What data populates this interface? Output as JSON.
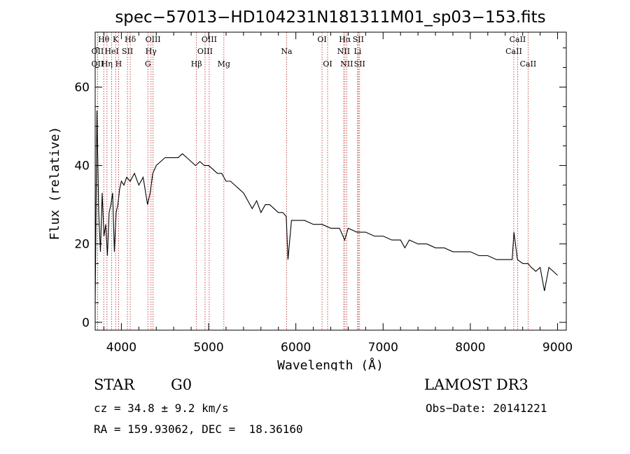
{
  "chart_data": {
    "type": "line",
    "title": "spec−57013−HD104231N181311M01_sp03−153.fits",
    "xlabel": "Wavelength (Å)",
    "ylabel": "Flux (relative)",
    "xlim": [
      3700,
      9100
    ],
    "ylim": [
      -2,
      74
    ],
    "xticks": [
      4000,
      5000,
      6000,
      7000,
      8000,
      9000
    ],
    "yticks": [
      0,
      20,
      40,
      60
    ],
    "series": [
      {
        "name": "spectrum",
        "x": [
          3700,
          3720,
          3740,
          3760,
          3780,
          3800,
          3820,
          3840,
          3860,
          3880,
          3900,
          3920,
          3940,
          3960,
          3980,
          4000,
          4030,
          4060,
          4100,
          4150,
          4200,
          4250,
          4300,
          4330,
          4360,
          4400,
          4450,
          4500,
          4550,
          4600,
          4650,
          4700,
          4750,
          4800,
          4850,
          4900,
          4950,
          5000,
          5050,
          5100,
          5150,
          5200,
          5250,
          5300,
          5350,
          5400,
          5450,
          5500,
          5550,
          5600,
          5650,
          5700,
          5750,
          5800,
          5850,
          5890,
          5910,
          5950,
          6000,
          6100,
          6200,
          6300,
          6400,
          6500,
          6560,
          6600,
          6700,
          6800,
          6900,
          7000,
          7100,
          7200,
          7250,
          7300,
          7400,
          7500,
          7600,
          7700,
          7800,
          7900,
          8000,
          8100,
          8200,
          8300,
          8400,
          8480,
          8500,
          8540,
          8600,
          8660,
          8700,
          8750,
          8800,
          8850,
          8900,
          8950,
          9000
        ],
        "y": [
          5,
          54,
          28,
          18,
          33,
          22,
          25,
          17,
          28,
          30,
          33,
          18,
          28,
          30,
          34,
          36,
          35,
          37,
          36,
          38,
          35,
          37,
          30,
          33,
          38,
          40,
          41,
          42,
          42,
          42,
          42,
          43,
          42,
          41,
          40,
          41,
          40,
          40,
          39,
          38,
          38,
          36,
          36,
          35,
          34,
          33,
          31,
          29,
          31,
          28,
          30,
          30,
          29,
          28,
          28,
          27,
          16,
          26,
          26,
          26,
          25,
          25,
          24,
          24,
          21,
          24,
          23,
          23,
          22,
          22,
          21,
          21,
          19,
          21,
          20,
          20,
          19,
          19,
          18,
          18,
          18,
          17,
          17,
          16,
          16,
          16,
          23,
          16,
          15,
          15,
          14,
          13,
          14,
          8,
          14,
          13,
          12
        ]
      }
    ],
    "lines": [
      {
        "label": "Hθ",
        "wave": 3798,
        "row": 0
      },
      {
        "label": "OII",
        "wave": 3727,
        "row": 1
      },
      {
        "label": "OII",
        "wave": 3727,
        "row": 2
      },
      {
        "label": "K",
        "wave": 3934,
        "row": 0
      },
      {
        "label": "HeI",
        "wave": 3889,
        "row": 1
      },
      {
        "label": "Hη",
        "wave": 3835,
        "row": 2
      },
      {
        "label": "SII",
        "wave": 4070,
        "row": 1
      },
      {
        "label": "H",
        "wave": 3968,
        "row": 2
      },
      {
        "label": "Hδ",
        "wave": 4102,
        "row": 0
      },
      {
        "label": "OIII",
        "wave": 4363,
        "row": 0
      },
      {
        "label": "Hγ",
        "wave": 4340,
        "row": 1
      },
      {
        "label": "G",
        "wave": 4304,
        "row": 2
      },
      {
        "label": "OIII",
        "wave": 5007,
        "row": 0
      },
      {
        "label": "OIII",
        "wave": 4959,
        "row": 1
      },
      {
        "label": "Hβ",
        "wave": 4861,
        "row": 2
      },
      {
        "label": "Mg",
        "wave": 5175,
        "row": 2
      },
      {
        "label": "Na",
        "wave": 5894,
        "row": 1
      },
      {
        "label": "OI",
        "wave": 6300,
        "row": 0
      },
      {
        "label": "OI",
        "wave": 6364,
        "row": 2
      },
      {
        "label": "Hα",
        "wave": 6563,
        "row": 0
      },
      {
        "label": "NII",
        "wave": 6548,
        "row": 1
      },
      {
        "label": "NII",
        "wave": 6583,
        "row": 2
      },
      {
        "label": "SII",
        "wave": 6716,
        "row": 0
      },
      {
        "label": "Li",
        "wave": 6708,
        "row": 1
      },
      {
        "label": "SII",
        "wave": 6731,
        "row": 2
      },
      {
        "label": "CaII",
        "wave": 8542,
        "row": 0
      },
      {
        "label": "CaII",
        "wave": 8498,
        "row": 1
      },
      {
        "label": "CaII",
        "wave": 8662,
        "row": 2
      }
    ]
  },
  "info": {
    "class": "STAR",
    "subclass": "G0",
    "survey": "LAMOST DR3",
    "cz": "cz = 34.8 ± 9.2 km/s",
    "obs_date": "Obs−Date: 20141221",
    "coords": "RA = 159.93062, DEC =  18.36160"
  },
  "colors": {
    "line_marker": "#b22222",
    "spectrum": "#000000"
  }
}
